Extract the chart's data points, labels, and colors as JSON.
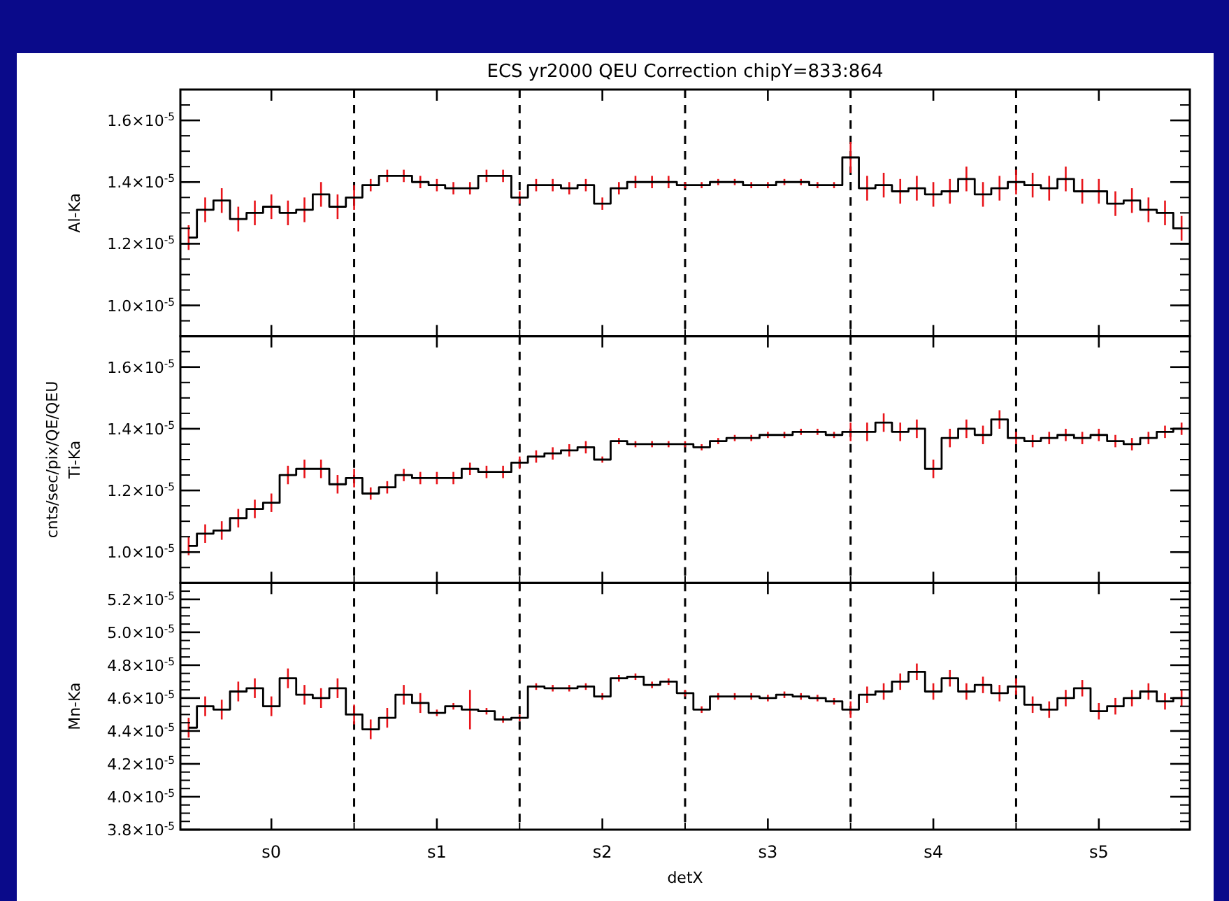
{
  "chart_data": [
    {
      "type": "step",
      "title": "ECS yr2000 QEU Correction chipY=833:864",
      "ylabel": "Al-Ka",
      "tick_labels": "y",
      "line_style": "solid",
      "categories": [
        null,
        null,
        null,
        null,
        null,
        null,
        null,
        null,
        null,
        null,
        null,
        null,
        null,
        null,
        null,
        null,
        null,
        null,
        null,
        null,
        null,
        null,
        null,
        null,
        null,
        null,
        null,
        null,
        null,
        null,
        null,
        null,
        null,
        null,
        null,
        null,
        null,
        null,
        null,
        null,
        null,
        null,
        null,
        null,
        null,
        null,
        null,
        null,
        null,
        null,
        null,
        null,
        null,
        null,
        null,
        null,
        null,
        null,
        null,
        null,
        null
      ],
      "ylim": [
        9e-06,
        1.7e-05
      ],
      "yticks": [
        {
          "value": 1e-05,
          "label": "1.0×10$^{-5}$"
        },
        {
          "value": 1.2e-05,
          "label": "1.2×10$^{-5}$"
        },
        {
          "value": 1.4e-05,
          "label": "1.4×10$^{-5}$"
        },
        {
          "value": 1.6e-05,
          "label": "1.6×10$^{-5}$"
        }
      ],
      "grid": "x",
      "series": [
        {
          "color": "#000000",
          "values": [
            1.22e-05,
            1.31e-05,
            1.34e-05,
            1.28e-05,
            1.3e-05,
            1.32e-05,
            1.3e-05,
            1.31e-05,
            1.36e-05,
            1.32e-05,
            1.35e-05,
            1.39e-05,
            1.42e-05,
            1.42e-05,
            1.4e-05,
            1.39e-05,
            1.38e-05,
            1.38e-05,
            1.42e-05,
            1.42e-05,
            1.35e-05,
            1.39e-05,
            1.39e-05,
            1.38e-05,
            1.39e-05,
            1.33e-05,
            1.38e-05,
            1.4e-05,
            1.4e-05,
            1.4e-05,
            1.39e-05,
            1.39e-05,
            1.4e-05,
            1.4e-05,
            1.39e-05,
            1.39e-05,
            1.4e-05,
            1.4e-05,
            1.39e-05,
            1.39e-05,
            1.48e-05,
            1.38e-05,
            1.39e-05,
            1.37e-05,
            1.38e-05,
            1.36e-05,
            1.37e-05,
            1.41e-05,
            1.36e-05,
            1.38e-05,
            1.4e-05,
            1.39e-05,
            1.38e-05,
            1.41e-05,
            1.37e-05,
            1.37e-05,
            1.33e-05,
            1.34e-05,
            1.31e-05,
            1.3e-05,
            1.25e-05
          ],
          "errors": [
            4e-07,
            4e-07,
            4e-07,
            4e-07,
            4e-07,
            4e-07,
            4e-07,
            4e-07,
            4e-07,
            4e-07,
            4e-07,
            2e-07,
            2e-07,
            2e-07,
            2e-07,
            2e-07,
            2e-07,
            2e-07,
            2e-07,
            2e-07,
            2e-07,
            2e-07,
            2e-07,
            2e-07,
            2e-07,
            2e-07,
            2e-07,
            2e-07,
            2e-07,
            2e-07,
            1e-07,
            1e-07,
            1e-07,
            1e-07,
            1e-07,
            1e-07,
            1e-07,
            1e-07,
            1e-07,
            1e-07,
            5e-07,
            4e-07,
            4e-07,
            4e-07,
            4e-07,
            4e-07,
            4e-07,
            4e-07,
            4e-07,
            4e-07,
            4e-07,
            4e-07,
            4e-07,
            4e-07,
            4e-07,
            4e-07,
            4e-07,
            4e-07,
            4e-07,
            4e-07,
            4e-07
          ]
        }
      ]
    },
    {
      "type": "step",
      "ylabel": "Ti-Ka",
      "annotations": [
        "cnts/sec/pix/QE/QEU"
      ],
      "tick_labels": "y",
      "line_style": "solid",
      "categories": [
        null,
        null,
        null,
        null,
        null,
        null,
        null,
        null,
        null,
        null,
        null,
        null,
        null,
        null,
        null,
        null,
        null,
        null,
        null,
        null,
        null,
        null,
        null,
        null,
        null,
        null,
        null,
        null,
        null,
        null,
        null,
        null,
        null,
        null,
        null,
        null,
        null,
        null,
        null,
        null,
        null,
        null,
        null,
        null,
        null,
        null,
        null,
        null,
        null,
        null,
        null,
        null,
        null,
        null,
        null,
        null,
        null,
        null,
        null,
        null,
        null
      ],
      "ylim": [
        9e-06,
        1.7e-05
      ],
      "yticks": [
        {
          "value": 1e-05,
          "label": "1.0×10$^{-5}$"
        },
        {
          "value": 1.2e-05,
          "label": "1.2×10$^{-5}$"
        },
        {
          "value": 1.4e-05,
          "label": "1.4×10$^{-5}$"
        },
        {
          "value": 1.6e-05,
          "label": "1.6×10$^{-5}$"
        }
      ],
      "grid": "x",
      "series": [
        {
          "color": "#000000",
          "values": [
            1.02e-05,
            1.06e-05,
            1.07e-05,
            1.11e-05,
            1.14e-05,
            1.16e-05,
            1.25e-05,
            1.27e-05,
            1.27e-05,
            1.22e-05,
            1.24e-05,
            1.19e-05,
            1.21e-05,
            1.25e-05,
            1.24e-05,
            1.24e-05,
            1.24e-05,
            1.27e-05,
            1.26e-05,
            1.26e-05,
            1.29e-05,
            1.31e-05,
            1.32e-05,
            1.33e-05,
            1.34e-05,
            1.3e-05,
            1.36e-05,
            1.35e-05,
            1.35e-05,
            1.35e-05,
            1.35e-05,
            1.34e-05,
            1.36e-05,
            1.37e-05,
            1.37e-05,
            1.38e-05,
            1.38e-05,
            1.39e-05,
            1.39e-05,
            1.38e-05,
            1.39e-05,
            1.39e-05,
            1.42e-05,
            1.39e-05,
            1.4e-05,
            1.27e-05,
            1.37e-05,
            1.4e-05,
            1.38e-05,
            1.43e-05,
            1.37e-05,
            1.36e-05,
            1.37e-05,
            1.38e-05,
            1.37e-05,
            1.38e-05,
            1.36e-05,
            1.35e-05,
            1.37e-05,
            1.39e-05,
            1.4e-05
          ],
          "errors": [
            3e-07,
            3e-07,
            3e-07,
            3e-07,
            3e-07,
            3e-07,
            3e-07,
            3e-07,
            3e-07,
            3e-07,
            3e-07,
            2e-07,
            2e-07,
            2e-07,
            2e-07,
            2e-07,
            2e-07,
            2e-07,
            2e-07,
            2e-07,
            2e-07,
            2e-07,
            2e-07,
            2e-07,
            2e-07,
            1e-07,
            1e-07,
            1e-07,
            1e-07,
            1e-07,
            1e-07,
            1e-07,
            1e-07,
            1e-07,
            1e-07,
            1e-07,
            1e-07,
            1e-07,
            1e-07,
            1e-07,
            3e-07,
            3e-07,
            3e-07,
            3e-07,
            3e-07,
            3e-07,
            3e-07,
            3e-07,
            3e-07,
            3e-07,
            2e-07,
            2e-07,
            2e-07,
            2e-07,
            2e-07,
            2e-07,
            2e-07,
            2e-07,
            2e-07,
            2e-07,
            2e-07
          ]
        }
      ]
    },
    {
      "type": "step",
      "xlabel": "detX",
      "ylabel": "Mn-Ka",
      "line_style": "solid",
      "categories": [
        null,
        null,
        null,
        null,
        null,
        "s0",
        null,
        null,
        null,
        null,
        null,
        null,
        null,
        null,
        null,
        "s1",
        null,
        null,
        null,
        null,
        null,
        null,
        null,
        null,
        null,
        "s2",
        null,
        null,
        null,
        null,
        null,
        null,
        null,
        null,
        null,
        "s3",
        null,
        null,
        null,
        null,
        null,
        null,
        null,
        null,
        null,
        "s4",
        null,
        null,
        null,
        null,
        null,
        null,
        null,
        null,
        null,
        "s5",
        null,
        null,
        null,
        null,
        null
      ],
      "ylim": [
        3.8e-05,
        5.3e-05
      ],
      "yticks": [
        {
          "value": 3.8e-05,
          "label": "3.8×10$^{-5}$"
        },
        {
          "value": 4e-05,
          "label": "4.0×10$^{-5}$"
        },
        {
          "value": 4.2e-05,
          "label": "4.2×10$^{-5}$"
        },
        {
          "value": 4.4e-05,
          "label": "4.4×10$^{-5}$"
        },
        {
          "value": 4.6e-05,
          "label": "4.6×10$^{-5}$"
        },
        {
          "value": 4.8e-05,
          "label": "4.8×10$^{-5}$"
        },
        {
          "value": 5e-05,
          "label": "5.0×10$^{-5}$"
        },
        {
          "value": 5.2e-05,
          "label": "5.2×10$^{-5}$"
        }
      ],
      "grid": "x",
      "series": [
        {
          "color": "#000000",
          "values": [
            4.42e-05,
            4.55e-05,
            4.53e-05,
            4.64e-05,
            4.66e-05,
            4.55e-05,
            4.72e-05,
            4.62e-05,
            4.6e-05,
            4.66e-05,
            4.5e-05,
            4.41e-05,
            4.48e-05,
            4.62e-05,
            4.57e-05,
            4.51e-05,
            4.55e-05,
            4.53e-05,
            4.52e-05,
            4.47e-05,
            4.48e-05,
            4.67e-05,
            4.66e-05,
            4.66e-05,
            4.67e-05,
            4.61e-05,
            4.72e-05,
            4.73e-05,
            4.68e-05,
            4.7e-05,
            4.63e-05,
            4.53e-05,
            4.61e-05,
            4.61e-05,
            4.61e-05,
            4.6e-05,
            4.62e-05,
            4.61e-05,
            4.6e-05,
            4.58e-05,
            4.53e-05,
            4.62e-05,
            4.64e-05,
            4.7e-05,
            4.76e-05,
            4.64e-05,
            4.72e-05,
            4.64e-05,
            4.68e-05,
            4.63e-05,
            4.67e-05,
            4.56e-05,
            4.53e-05,
            4.6e-05,
            4.66e-05,
            4.52e-05,
            4.55e-05,
            4.6e-05,
            4.64e-05,
            4.58e-05,
            4.6e-05
          ],
          "errors": [
            6e-07,
            6e-07,
            6e-07,
            6e-07,
            6e-07,
            6e-07,
            6e-07,
            6e-07,
            6e-07,
            6e-07,
            6e-07,
            6e-07,
            6e-07,
            6e-07,
            6e-07,
            2e-07,
            2e-07,
            1.2e-06,
            2e-07,
            2e-07,
            2e-07,
            2e-07,
            2e-07,
            2e-07,
            2e-07,
            2e-07,
            2e-07,
            2e-07,
            2e-07,
            2e-07,
            2e-07,
            2e-07,
            2e-07,
            2e-07,
            2e-07,
            2e-07,
            2e-07,
            2e-07,
            2e-07,
            2e-07,
            5e-07,
            5e-07,
            5e-07,
            5e-07,
            5e-07,
            5e-07,
            5e-07,
            5e-07,
            5e-07,
            5e-07,
            5e-07,
            5e-07,
            5e-07,
            5e-07,
            5e-07,
            5e-07,
            5e-07,
            5e-07,
            5e-07,
            5e-07,
            5e-07
          ]
        }
      ]
    }
  ]
}
